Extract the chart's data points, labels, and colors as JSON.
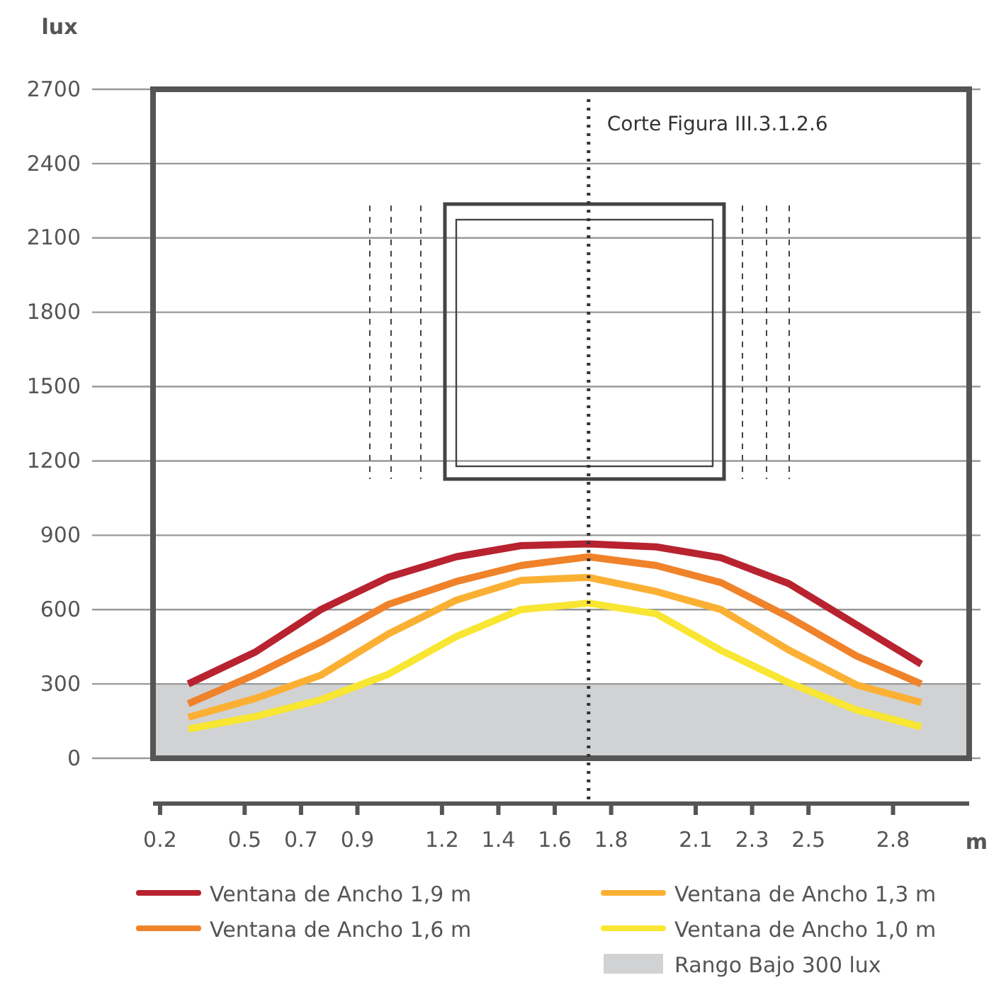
{
  "chart_data": {
    "type": "line",
    "ylabel": "lux",
    "xlabel": "m",
    "x": [
      0.3,
      0.54,
      0.77,
      1.01,
      1.25,
      1.48,
      1.72,
      1.96,
      2.19,
      2.43,
      2.67,
      2.9
    ],
    "series": [
      {
        "name": "Ventana de Ancho 1,9 m",
        "color": "#b8232f",
        "values": [
          300,
          430,
          600,
          731,
          813,
          858,
          865,
          853,
          809,
          705,
          539,
          380
        ]
      },
      {
        "name": "Ventana de Ancho 1,6 m",
        "color": "#f0822a",
        "values": [
          220,
          339,
          469,
          621,
          713,
          778,
          813,
          778,
          709,
          570,
          413,
          300
        ]
      },
      {
        "name": "Ventana de Ancho 1,3 m",
        "color": "#fbb034",
        "values": [
          165,
          242,
          335,
          502,
          638,
          718,
          730,
          673,
          600,
          437,
          296,
          225
        ]
      },
      {
        "name": "Ventana de Ancho 1,0 m",
        "color": "#f8e633",
        "values": [
          118,
          169,
          236,
          339,
          491,
          600,
          626,
          583,
          435,
          305,
          195,
          127
        ]
      }
    ],
    "xlim": [
      0.175,
      3.07
    ],
    "xticks": [
      0.2,
      0.5,
      0.7,
      0.9,
      1.2,
      1.4,
      1.6,
      1.8,
      2.1,
      2.3,
      2.5,
      2.8
    ],
    "ylim": [
      0,
      2700
    ],
    "yticks": [
      0,
      300,
      600,
      900,
      1200,
      1500,
      1800,
      2100,
      2400,
      2700
    ],
    "grid": "y",
    "legend": "bottom",
    "marker": "none",
    "line_style": "solid",
    "ref_lines": [
      {
        "axis": "x",
        "value": 1.72,
        "label": "Corte Figura III.3.1.2.6",
        "line_style": "dotted",
        "color": "#333333"
      }
    ],
    "bands": [
      {
        "axis": "y",
        "from": 0,
        "to": 300,
        "label": "Rango Bajo 300 lux",
        "color": "#d1d2d4"
      }
    ]
  }
}
